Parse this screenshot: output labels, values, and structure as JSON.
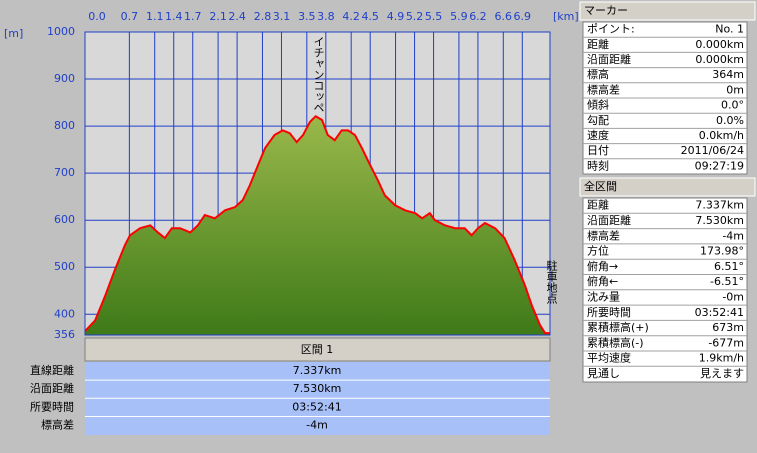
{
  "chart_data": {
    "type": "area",
    "x_label": "[km]",
    "y_label": "[m]",
    "x": [
      0,
      0.16,
      0.32,
      0.47,
      0.63,
      0.71,
      0.87,
      1.03,
      1.15,
      1.26,
      1.37,
      1.5,
      1.66,
      1.78,
      1.89,
      2.05,
      2.21,
      2.37,
      2.49,
      2.6,
      2.73,
      2.84,
      2.99,
      3.12,
      3.23,
      3.34,
      3.44,
      3.55,
      3.64,
      3.74,
      3.83,
      3.94,
      4.05,
      4.15,
      4.26,
      4.37,
      4.5,
      4.62,
      4.73,
      4.89,
      5.05,
      5.21,
      5.32,
      5.44,
      5.52,
      5.68,
      5.84,
      5.99,
      6.1,
      6.2,
      6.31,
      6.47,
      6.62,
      6.78,
      6.94,
      7.05,
      7.18,
      7.26,
      7.337
    ],
    "values": [
      364,
      387,
      440,
      494,
      547,
      568,
      583,
      589,
      574,
      562,
      583,
      583,
      574,
      589,
      611,
      604,
      621,
      628,
      643,
      674,
      717,
      753,
      781,
      791,
      785,
      766,
      781,
      809,
      821,
      813,
      781,
      770,
      791,
      791,
      781,
      753,
      717,
      685,
      653,
      632,
      621,
      615,
      604,
      615,
      600,
      589,
      583,
      583,
      568,
      583,
      594,
      583,
      562,
      515,
      462,
      419,
      377,
      360,
      360
    ],
    "color": "#ff0000",
    "fill_color": "#6b9a2c",
    "xlim": [
      0,
      7.337
    ],
    "ylim": [
      356,
      1000
    ],
    "xticks": [
      {
        "value": 0,
        "label": "0.0"
      },
      0.7,
      1.1,
      1.4,
      1.7,
      2.1,
      2.4,
      2.8,
      3.1,
      3.5,
      3.8,
      4.2,
      4.5,
      4.9,
      5.2,
      5.5,
      5.9,
      6.2,
      6.6,
      6.9
    ],
    "yticks": [
      356,
      400,
      500,
      600,
      700,
      800,
      900,
      1000
    ],
    "grid": true,
    "annotations": [
      "イチャンコッペ",
      "駐車地点"
    ]
  },
  "section": {
    "title": "区間 1",
    "rows": [
      {
        "label": "直線距離",
        "value": "7.337km"
      },
      {
        "label": "沿面距離",
        "value": "7.530km"
      },
      {
        "label": "所要時間",
        "value": "03:52:41"
      },
      {
        "label": "標高差",
        "value": "-4m"
      }
    ]
  },
  "marker": {
    "title": "マーカー",
    "rows": [
      {
        "label": "ポイント:",
        "value": "No. 1"
      },
      {
        "label": "距離",
        "value": "0.000km"
      },
      {
        "label": "沿面距離",
        "value": "0.000km"
      },
      {
        "label": "標高",
        "value": "364m"
      },
      {
        "label": "標高差",
        "value": "0m"
      },
      {
        "label": "傾斜",
        "value": "0.0°"
      },
      {
        "label": "勾配",
        "value": "0.0%"
      },
      {
        "label": "速度",
        "value": "0.0km/h"
      },
      {
        "label": "日付",
        "value": "2011/06/24"
      },
      {
        "label": "時刻",
        "value": "09:27:19"
      }
    ]
  },
  "total": {
    "title": "全区間",
    "rows": [
      {
        "label": "距離",
        "value": "7.337km"
      },
      {
        "label": "沿面距離",
        "value": "7.530km"
      },
      {
        "label": "標高差",
        "value": "-4m"
      },
      {
        "label": "方位",
        "value": "173.98°"
      },
      {
        "label": "俯角→",
        "value": "6.51°"
      },
      {
        "label": "俯角←",
        "value": "-6.51°"
      },
      {
        "label": "沈み量",
        "value": "-0m"
      },
      {
        "label": "所要時間",
        "value": "03:52:41"
      },
      {
        "label": "累積標高(+)",
        "value": "673m"
      },
      {
        "label": "累積標高(-)",
        "value": "-677m"
      },
      {
        "label": "平均速度",
        "value": "1.9km/h"
      },
      {
        "label": "見通し",
        "value": "見えます"
      }
    ]
  }
}
